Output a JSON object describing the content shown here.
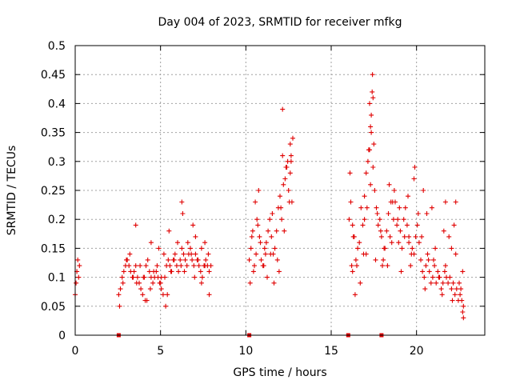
{
  "chart_data": {
    "type": "scatter",
    "title": "Day 004 of 2023, SRMTID for receiver mfkg",
    "xlabel": "GPS time / hours",
    "ylabel": "SRMTID / TECUs",
    "xlim": [
      0,
      24
    ],
    "ylim": [
      0,
      0.5
    ],
    "xticks": [
      0,
      5,
      10,
      15,
      20
    ],
    "yticks": [
      0,
      0.05,
      0.1,
      0.15,
      0.2,
      0.25,
      0.3,
      0.35,
      0.4,
      0.45,
      0.5
    ],
    "ytick_labels": [
      "0",
      "0.05",
      "0.1",
      "0.15",
      "0.2",
      "0.25",
      "0.3",
      "0.35",
      "0.4",
      "0.45",
      "0.5"
    ],
    "xtick_labels": [
      "0",
      "5",
      "10",
      "15",
      "20"
    ],
    "grid": true,
    "marker": "+",
    "series_color": "#e00000",
    "zero_markers_x": [
      2.55,
      10.2,
      16.0,
      17.95
    ],
    "series": [
      {
        "name": "SRMTID",
        "x": [
          0.0,
          0.05,
          0.1,
          0.15,
          0.2,
          0.25,
          2.55,
          2.65,
          2.75,
          2.85,
          2.95,
          3.05,
          3.15,
          3.25,
          3.35,
          3.45,
          3.55,
          3.65,
          3.75,
          3.85,
          3.95,
          4.05,
          4.15,
          4.25,
          4.35,
          4.45,
          4.55,
          4.65,
          4.75,
          4.85,
          4.95,
          5.05,
          5.15,
          5.25,
          5.35,
          5.45,
          5.55,
          5.65,
          5.75,
          5.85,
          5.95,
          6.05,
          6.15,
          6.25,
          6.35,
          6.45,
          6.55,
          6.65,
          6.75,
          6.85,
          6.95,
          7.05,
          7.15,
          7.25,
          7.35,
          7.45,
          7.55,
          7.65,
          7.75,
          7.85,
          7.95,
          2.6,
          2.8,
          3.0,
          3.2,
          3.4,
          3.6,
          3.8,
          4.0,
          4.2,
          4.4,
          4.6,
          4.8,
          5.0,
          5.2,
          5.4,
          5.6,
          5.8,
          6.0,
          6.2,
          6.4,
          6.6,
          6.8,
          7.0,
          7.2,
          7.4,
          7.6,
          7.8,
          3.55,
          4.45,
          5.05,
          5.3,
          6.25,
          6.3,
          7.05,
          7.4,
          7.85,
          4.1,
          4.9,
          5.5,
          6.9,
          7.6,
          10.2,
          10.3,
          10.4,
          10.5,
          10.6,
          10.7,
          10.8,
          10.9,
          11.0,
          11.1,
          11.2,
          11.3,
          11.4,
          11.5,
          11.6,
          11.7,
          11.8,
          11.9,
          12.0,
          12.1,
          12.2,
          12.3,
          12.4,
          12.5,
          12.6,
          12.7,
          10.25,
          10.45,
          10.65,
          10.85,
          11.05,
          11.25,
          11.45,
          11.65,
          11.85,
          12.05,
          12.25,
          12.45,
          12.65,
          10.35,
          10.55,
          10.75,
          11.15,
          11.55,
          11.95,
          12.15,
          12.35,
          12.55,
          12.75,
          12.15,
          12.6,
          12.65,
          16.05,
          16.15,
          16.25,
          16.35,
          16.45,
          16.55,
          16.65,
          16.75,
          16.85,
          16.95,
          17.05,
          17.15,
          17.25,
          17.35,
          17.45,
          17.55,
          17.65,
          17.75,
          17.85,
          17.95,
          18.05,
          18.15,
          18.25,
          18.35,
          18.45,
          18.55,
          18.65,
          18.75,
          18.85,
          18.95,
          19.05,
          19.15,
          19.25,
          19.35,
          19.45,
          19.55,
          19.65,
          19.75,
          19.85,
          19.95,
          20.05,
          20.15,
          20.25,
          20.35,
          20.45,
          20.55,
          20.65,
          20.75,
          20.85,
          20.95,
          21.05,
          21.15,
          21.25,
          21.35,
          21.45,
          21.55,
          21.65,
          21.75,
          21.85,
          21.95,
          22.05,
          22.15,
          22.25,
          22.35,
          22.45,
          22.55,
          22.65,
          22.75,
          16.1,
          16.3,
          16.5,
          16.7,
          16.9,
          17.1,
          17.3,
          17.5,
          17.7,
          17.9,
          18.1,
          18.3,
          18.5,
          18.7,
          18.9,
          19.1,
          19.3,
          19.5,
          19.7,
          19.9,
          20.1,
          20.3,
          20.5,
          20.7,
          20.9,
          21.1,
          21.3,
          21.5,
          21.7,
          21.9,
          22.1,
          22.3,
          22.5,
          22.7,
          17.35,
          17.4,
          17.42,
          17.45,
          17.3,
          17.2,
          17.25,
          16.2,
          16.25,
          17.05,
          18.4,
          18.6,
          19.55,
          19.85,
          20.4,
          21.6,
          21.7,
          22.7,
          16.4,
          16.95,
          17.6,
          18.0,
          19.0,
          20.6,
          21.0,
          22.05,
          22.2,
          22.6,
          22.75,
          22.3
        ],
        "y": [
          0.07,
          0.09,
          0.11,
          0.13,
          0.1,
          0.12,
          0.07,
          0.08,
          0.1,
          0.11,
          0.12,
          0.13,
          0.12,
          0.11,
          0.1,
          0.11,
          0.12,
          0.1,
          0.09,
          0.08,
          0.07,
          0.1,
          0.12,
          0.13,
          0.11,
          0.1,
          0.09,
          0.1,
          0.11,
          0.1,
          0.09,
          0.08,
          0.07,
          0.1,
          0.12,
          0.13,
          0.12,
          0.11,
          0.13,
          0.14,
          0.12,
          0.11,
          0.13,
          0.15,
          0.14,
          0.13,
          0.12,
          0.14,
          0.15,
          0.13,
          0.12,
          0.14,
          0.13,
          0.12,
          0.11,
          0.1,
          0.12,
          0.13,
          0.12,
          0.11,
          0.12,
          0.05,
          0.09,
          0.13,
          0.14,
          0.1,
          0.09,
          0.12,
          0.1,
          0.06,
          0.08,
          0.11,
          0.12,
          0.09,
          0.14,
          0.07,
          0.11,
          0.13,
          0.16,
          0.12,
          0.11,
          0.16,
          0.14,
          0.1,
          0.13,
          0.15,
          0.12,
          0.14,
          0.19,
          0.16,
          0.1,
          0.05,
          0.23,
          0.21,
          0.17,
          0.09,
          0.07,
          0.06,
          0.15,
          0.18,
          0.19,
          0.16,
          0.13,
          0.15,
          0.18,
          0.12,
          0.14,
          0.19,
          0.17,
          0.13,
          0.12,
          0.15,
          0.16,
          0.18,
          0.2,
          0.17,
          0.14,
          0.15,
          0.18,
          0.22,
          0.24,
          0.2,
          0.26,
          0.27,
          0.29,
          0.25,
          0.28,
          0.23,
          0.09,
          0.11,
          0.2,
          0.16,
          0.12,
          0.1,
          0.14,
          0.09,
          0.13,
          0.22,
          0.18,
          0.3,
          0.31,
          0.17,
          0.23,
          0.25,
          0.14,
          0.21,
          0.11,
          0.39,
          0.29,
          0.23,
          0.34,
          0.31,
          0.33,
          0.3,
          0.2,
          0.23,
          0.19,
          0.17,
          0.13,
          0.15,
          0.16,
          0.22,
          0.19,
          0.24,
          0.28,
          0.3,
          0.32,
          0.35,
          0.29,
          0.25,
          0.22,
          0.19,
          0.2,
          0.17,
          0.13,
          0.15,
          0.18,
          0.21,
          0.17,
          0.16,
          0.2,
          0.23,
          0.19,
          0.16,
          0.18,
          0.15,
          0.2,
          0.22,
          0.19,
          0.17,
          0.12,
          0.15,
          0.14,
          0.17,
          0.19,
          0.16,
          0.13,
          0.11,
          0.1,
          0.12,
          0.14,
          0.11,
          0.09,
          0.1,
          0.12,
          0.09,
          0.11,
          0.1,
          0.08,
          0.09,
          0.11,
          0.1,
          0.09,
          0.1,
          0.08,
          0.09,
          0.07,
          0.08,
          0.06,
          0.07,
          0.06,
          0.05,
          0.28,
          0.17,
          0.12,
          0.09,
          0.14,
          0.22,
          0.26,
          0.33,
          0.21,
          0.18,
          0.15,
          0.12,
          0.23,
          0.25,
          0.2,
          0.11,
          0.17,
          0.24,
          0.14,
          0.29,
          0.21,
          0.17,
          0.08,
          0.13,
          0.22,
          0.15,
          0.1,
          0.07,
          0.12,
          0.17,
          0.06,
          0.14,
          0.09,
          0.04,
          0.38,
          0.42,
          0.45,
          0.41,
          0.36,
          0.32,
          0.4,
          0.12,
          0.11,
          0.14,
          0.26,
          0.23,
          0.16,
          0.27,
          0.25,
          0.18,
          0.23,
          0.11,
          0.07,
          0.2,
          0.13,
          0.12,
          0.22,
          0.21,
          0.13,
          0.15,
          0.19,
          0.08,
          0.03,
          0.23
        ]
      }
    ]
  }
}
